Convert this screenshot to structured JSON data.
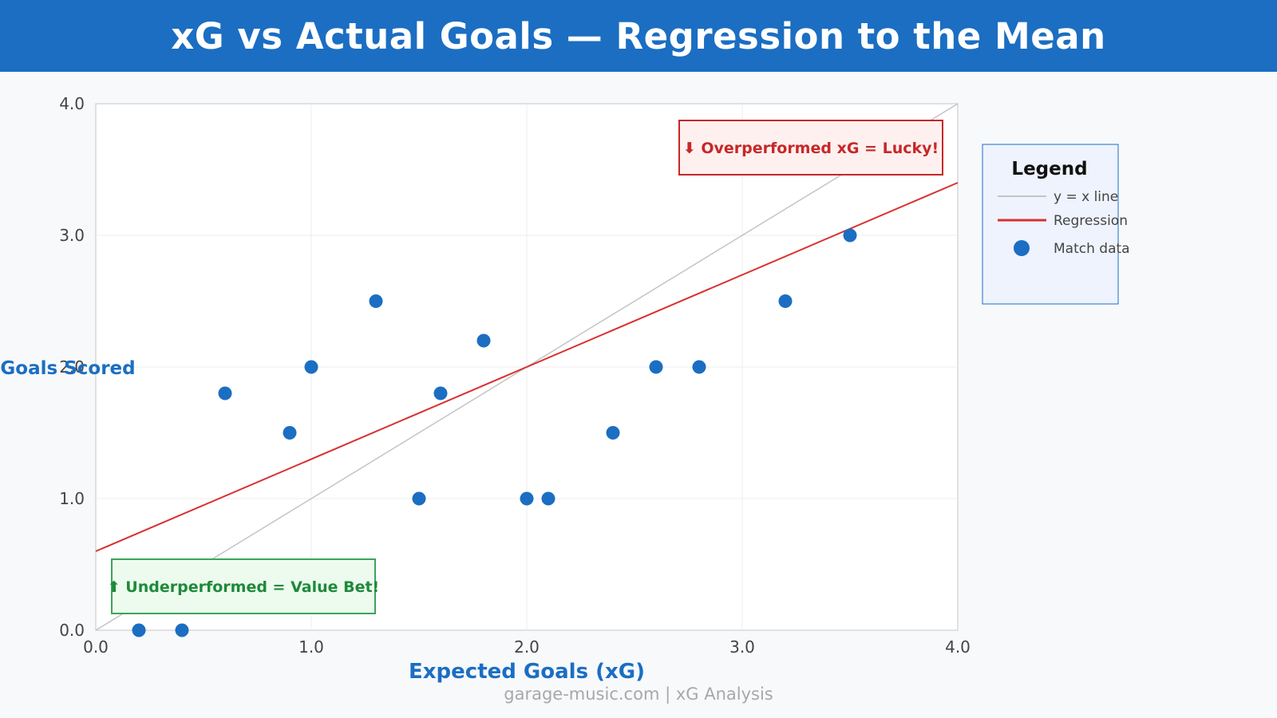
{
  "header": {
    "title": "xG vs Actual Goals — Regression to the Mean"
  },
  "footer": {
    "text": "garage-music.com  |  xG Analysis"
  },
  "colors": {
    "header_bg": "#1b6ec2",
    "points": "#1b6ec2",
    "regression": "#d93030",
    "identity_line": "#c4c4c4",
    "overperform_text": "#c62828",
    "underperform_text": "#1e8a3a"
  },
  "chart_data": {
    "type": "scatter",
    "xlabel": "Expected Goals (xG)",
    "ylabel": "Goals Scored",
    "xlim": [
      0,
      4
    ],
    "ylim": [
      0,
      4
    ],
    "x_ticks": [
      "0.0",
      "1.0",
      "2.0",
      "3.0",
      "4.0"
    ],
    "y_ticks": [
      "0.0",
      "1.0",
      "2.0",
      "3.0",
      "4.0"
    ],
    "grid": true,
    "points": [
      {
        "x": 0.2,
        "y": 0.0
      },
      {
        "x": 0.4,
        "y": 0.0
      },
      {
        "x": 0.6,
        "y": 1.8
      },
      {
        "x": 0.9,
        "y": 1.5
      },
      {
        "x": 1.0,
        "y": 2.0
      },
      {
        "x": 1.3,
        "y": 2.5
      },
      {
        "x": 1.5,
        "y": 1.0
      },
      {
        "x": 1.6,
        "y": 1.8
      },
      {
        "x": 1.8,
        "y": 2.2
      },
      {
        "x": 2.0,
        "y": 1.0
      },
      {
        "x": 2.1,
        "y": 1.0
      },
      {
        "x": 2.4,
        "y": 1.5
      },
      {
        "x": 2.6,
        "y": 2.0
      },
      {
        "x": 2.8,
        "y": 2.0
      },
      {
        "x": 3.2,
        "y": 2.5
      },
      {
        "x": 3.5,
        "y": 3.0
      }
    ],
    "identity_line": {
      "from": [
        0,
        0
      ],
      "to": [
        4,
        4
      ]
    },
    "regression_line": {
      "from": [
        0,
        0.6
      ],
      "to": [
        4,
        3.4
      ]
    },
    "legend": {
      "title": "Legend",
      "placement": "right",
      "entries": [
        {
          "label": "y = x line",
          "kind": "line",
          "color": "#c4c4c4"
        },
        {
          "label": "Regression",
          "kind": "line",
          "color": "#d93030"
        },
        {
          "label": "Match data",
          "kind": "marker",
          "color": "#1b6ec2"
        }
      ]
    },
    "annotations": [
      {
        "id": "overperform",
        "text": "⬇ Overperformed xG = Lucky!",
        "position": "top-right"
      },
      {
        "id": "underperform",
        "text": "⬆ Underperformed = Value Bet!",
        "position": "bottom-left"
      }
    ]
  }
}
